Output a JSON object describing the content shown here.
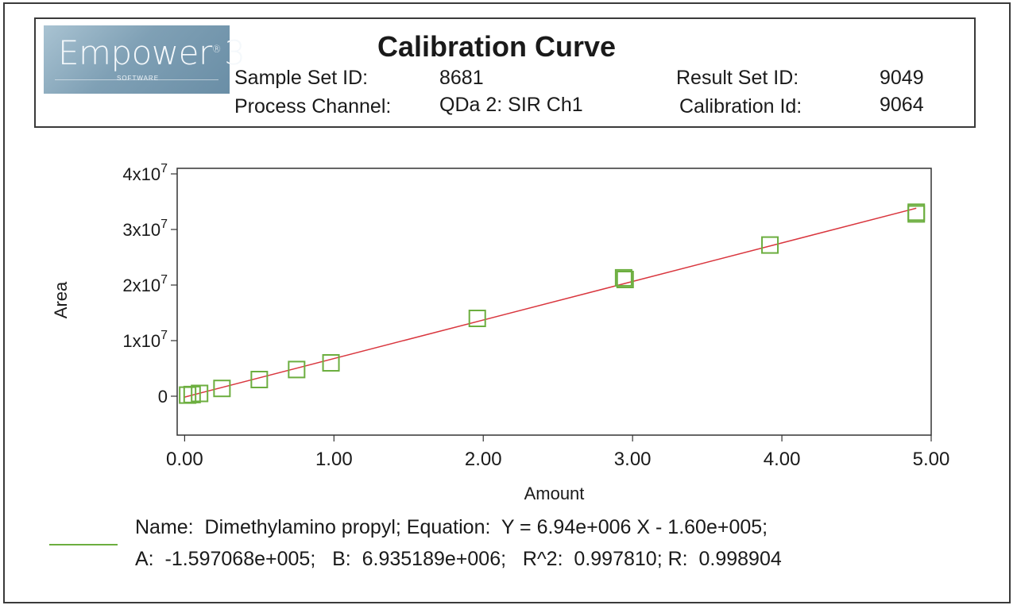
{
  "header": {
    "logo_text": "Empower",
    "logo_version": "3",
    "logo_sub": "SOFTWARE",
    "title": "Calibration Curve",
    "sample_set_label": "Sample Set ID:",
    "sample_set_value": "8681",
    "process_channel_label": "Process Channel:",
    "process_channel_value": "QDa 2: SIR Ch1",
    "result_set_label": "Result Set ID:",
    "result_set_value": "9049",
    "calibration_label": "Calibration Id:",
    "calibration_value": "9064"
  },
  "chart_data": {
    "type": "scatter",
    "xlabel": "Amount",
    "ylabel": "Area",
    "xlim": [
      -0.05,
      5.0
    ],
    "ylim": [
      -7000000,
      41000000
    ],
    "x_ticks": [
      0,
      1,
      2,
      3,
      4,
      5
    ],
    "x_tick_labels": [
      "0.00",
      "1.00",
      "2.00",
      "3.00",
      "4.00",
      "5.00"
    ],
    "y_ticks": [
      0,
      10000000,
      20000000,
      30000000,
      40000000
    ],
    "y_tick_labels": [
      {
        "base": "0",
        "exp": ""
      },
      {
        "base": "1x10",
        "exp": "7"
      },
      {
        "base": "2x10",
        "exp": "7"
      },
      {
        "base": "3x10",
        "exp": "7"
      },
      {
        "base": "4x10",
        "exp": "7"
      }
    ],
    "series": [
      {
        "points": [
          {
            "x": 0.02,
            "y": 200000
          },
          {
            "x": 0.05,
            "y": 300000
          },
          {
            "x": 0.1,
            "y": 500000
          },
          {
            "x": 0.25,
            "y": 1400000
          },
          {
            "x": 0.5,
            "y": 3000000
          },
          {
            "x": 0.75,
            "y": 4800000
          },
          {
            "x": 0.98,
            "y": 6000000
          },
          {
            "x": 1.96,
            "y": 14000000
          },
          {
            "x": 2.94,
            "y": 21300000
          },
          {
            "x": 2.95,
            "y": 21000000
          },
          {
            "x": 3.92,
            "y": 27200000
          },
          {
            "x": 4.9,
            "y": 33100000
          },
          {
            "x": 4.9,
            "y": 32800000
          }
        ],
        "marker_color": "#6cae3f"
      }
    ],
    "fit_line": {
      "slope": 6935189,
      "intercept": -159706.8,
      "x_range": [
        0,
        4.9
      ],
      "color": "#d9363e"
    },
    "grid": false
  },
  "legend": {
    "line_color": "#6cae3f",
    "equation_line1": "Name:  Dimethylamino propyl; Equation:  Y = 6.94e+006 X - 1.60e+005;",
    "equation_line2": "A:  -1.597068e+005;   B:  6.935189e+006;   R^2:  0.997810; R:  0.998904"
  }
}
